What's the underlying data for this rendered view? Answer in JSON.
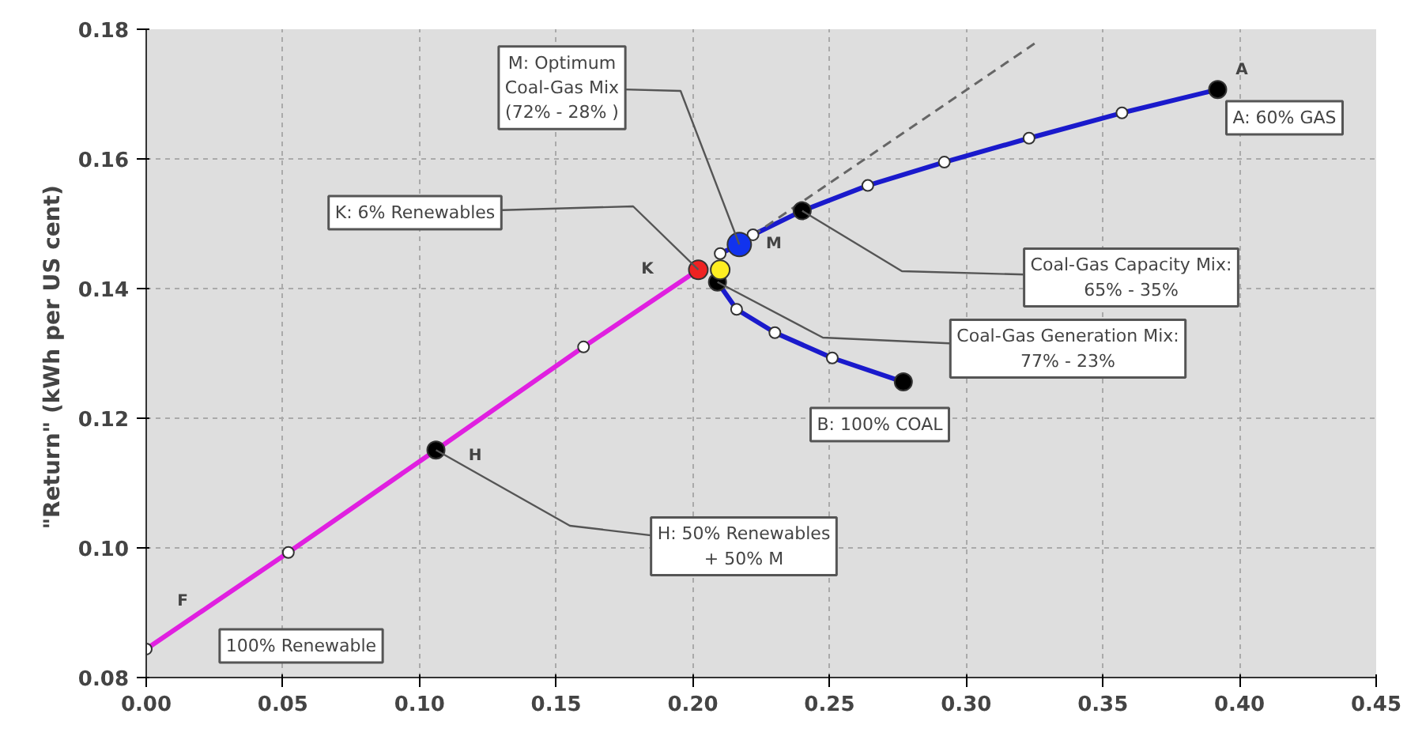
{
  "chart_data": {
    "type": "line",
    "ylabel": "\"Return\"  (kWh per US cent)",
    "xlim": [
      0,
      0.45
    ],
    "ylim": [
      0.08,
      0.18
    ],
    "xticks": [
      {
        "value": 0,
        "label": "0.00"
      },
      0.05,
      {
        "value": 0.1,
        "label": "0.10"
      },
      0.15,
      {
        "value": 0.2,
        "label": "0.20"
      },
      0.25,
      {
        "value": 0.3,
        "label": "0.30"
      },
      0.35,
      {
        "value": 0.4,
        "label": "0.40"
      },
      0.45
    ],
    "yticks": [
      0.08,
      {
        "value": 0.1,
        "label": "0.10"
      },
      0.12,
      0.14,
      0.16,
      0.18
    ],
    "grid": true,
    "series": [
      {
        "color": "#e020e0",
        "marker": "none",
        "x": [
          0,
          0.052,
          0.106,
          0.16,
          0.202
        ],
        "values": [
          0.0844,
          0.0993,
          0.1151,
          0.131,
          0.1429
        ]
      },
      {
        "color": "#1a1acc",
        "marker": "none",
        "x": [
          0.21,
          0.217,
          0.222,
          0.24,
          0.264,
          0.292,
          0.323,
          0.357,
          0.392
        ],
        "values": [
          0.1454,
          0.1468,
          0.1483,
          0.152,
          0.1559,
          0.1595,
          0.1632,
          0.1671,
          0.1707
        ]
      },
      {
        "color": "#1a1acc",
        "marker": "none",
        "x": [
          0.209,
          0.216,
          0.23,
          0.251,
          0.277
        ],
        "values": [
          0.141,
          0.1368,
          0.1332,
          0.1293,
          0.1256
        ]
      },
      {
        "color": "#666666",
        "marker": "none",
        "line_style": "dashed",
        "x": [
          0.217,
          0.325
        ],
        "values": [
          0.1468,
          0.1778
        ]
      },
      {
        "type": "scatter",
        "color": "#ffffff",
        "marker": "circle",
        "x": [
          0,
          0.052,
          0.16,
          0.21,
          0.222,
          0.264,
          0.292,
          0.323,
          0.357,
          0.216,
          0.23,
          0.251
        ],
        "values": [
          0.0844,
          0.0993,
          0.131,
          0.1454,
          0.1483,
          0.1559,
          0.1595,
          0.1632,
          0.1671,
          0.1368,
          0.1332,
          0.1293
        ]
      },
      {
        "type": "scatter",
        "color": "#000000",
        "marker": "circle",
        "x": [
          0.106,
          0.24,
          0.392,
          0.209,
          0.277
        ],
        "values": [
          0.1151,
          0.152,
          0.1707,
          0.141,
          0.1256
        ]
      },
      {
        "type": "scatter",
        "color": "#ee2222",
        "marker": "circle",
        "x": [
          0.202
        ],
        "values": [
          0.1429
        ]
      },
      {
        "type": "scatter",
        "color": "#ffee22",
        "marker": "circle",
        "x": [
          0.21
        ],
        "values": [
          0.1429
        ]
      },
      {
        "type": "scatter",
        "color": "#1133ee",
        "marker": "circle",
        "x": [
          0.217
        ],
        "values": [
          0.1468
        ]
      }
    ],
    "annotations": [
      "A",
      "A: 60% GAS",
      "B: 100% COAL",
      "K",
      {
        "text": "K: 6% Renewables",
        "x": 0.202,
        "y": 0.1429
      },
      "M",
      {
        "text": "M: Optimum\nCoal-Gas Mix\n(72% - 28% )",
        "x": 0.217,
        "y": 0.1468
      },
      "H",
      {
        "text": "H: 50% Renewables\n+ 50% M",
        "x": 0.106,
        "y": 0.1151
      },
      "F",
      "100% Renewable",
      {
        "text": "Coal-Gas Capacity Mix:\n65% - 35%",
        "x": 0.24,
        "y": 0.152
      },
      {
        "text": "Coal-Gas Generation Mix:\n77% - 23%",
        "x": 0.209,
        "y": 0.141
      }
    ]
  }
}
